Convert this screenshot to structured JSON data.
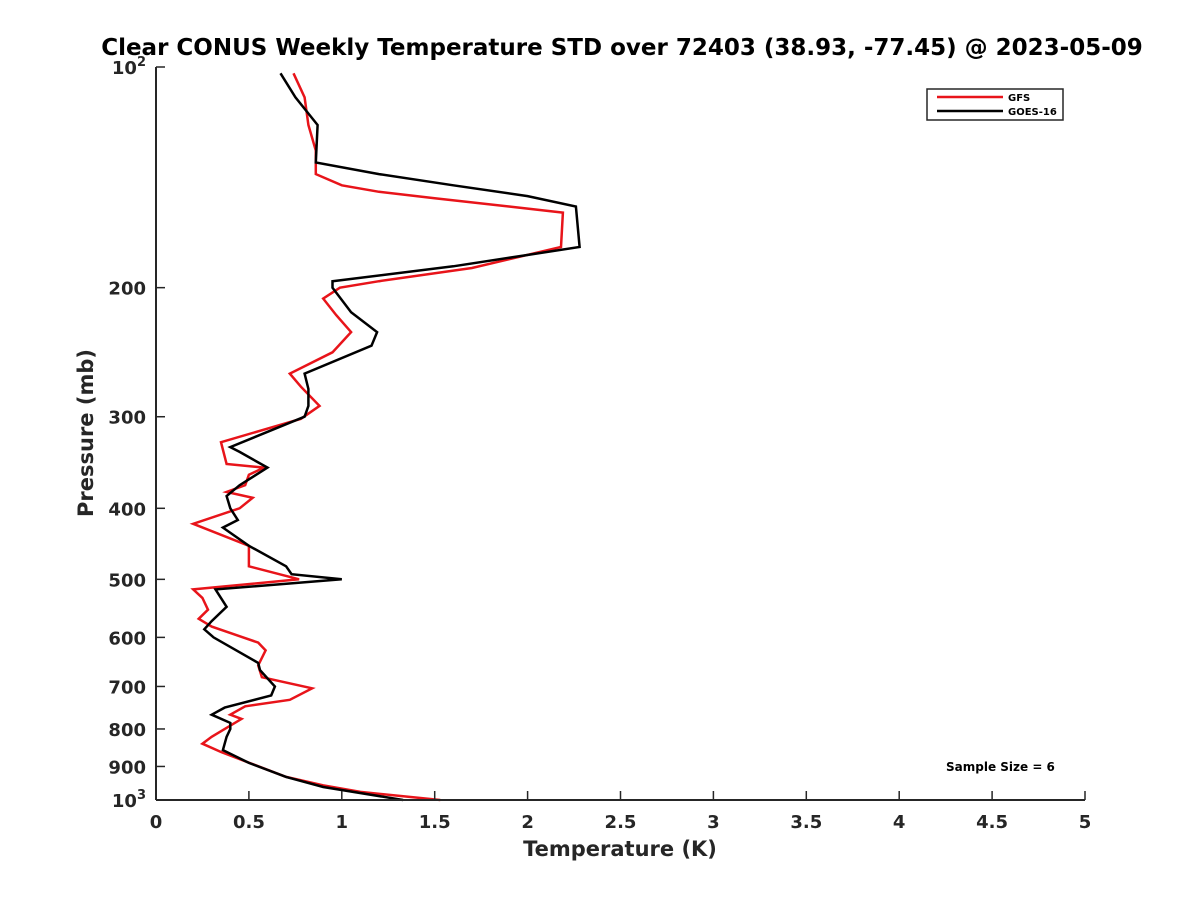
{
  "chart_data": {
    "type": "line",
    "title": "Clear CONUS Weekly Temperature STD over 72403 (38.93, -77.45) @ 2023-05-09",
    "xlabel": "Temperature (K)",
    "ylabel": "Pressure (mb)",
    "xlim": [
      0,
      5
    ],
    "ylim": [
      1000,
      100
    ],
    "y_scale": "log",
    "y_reversed": true,
    "grid": false,
    "legend_position": "top-right",
    "x_ticks": [
      0,
      0.5,
      1,
      1.5,
      2,
      2.5,
      3,
      3.5,
      4,
      4.5,
      5
    ],
    "x_tick_labels": [
      "0",
      "0.5",
      "1",
      "1.5",
      "2",
      "2.5",
      "3",
      "3.5",
      "4",
      "4.5",
      "5"
    ],
    "y_ticks": [
      100,
      200,
      300,
      400,
      500,
      600,
      700,
      800,
      900,
      1000
    ],
    "y_tick_labels": [
      {
        "base": "10",
        "exp": "2"
      },
      {
        "base": "200",
        "exp": ""
      },
      {
        "base": "300",
        "exp": ""
      },
      {
        "base": "400",
        "exp": ""
      },
      {
        "base": "500",
        "exp": ""
      },
      {
        "base": "600",
        "exp": ""
      },
      {
        "base": "700",
        "exp": ""
      },
      {
        "base": "800",
        "exp": ""
      },
      {
        "base": "900",
        "exp": ""
      },
      {
        "base": "10",
        "exp": "3"
      }
    ],
    "annotation": "Sample Size = 6",
    "series": [
      {
        "name": "GFS",
        "color": "#e8141a",
        "x": [
          0.74,
          0.8,
          0.82,
          0.86,
          0.86,
          1.0,
          1.2,
          1.5,
          1.9,
          2.19,
          2.18,
          1.7,
          1.2,
          0.99,
          0.9,
          0.97,
          1.05,
          0.95,
          0.72,
          0.78,
          0.88,
          0.78,
          0.35,
          0.38,
          0.58,
          0.5,
          0.48,
          0.38,
          0.52,
          0.45,
          0.2,
          0.5,
          0.5,
          0.77,
          0.2,
          0.25,
          0.28,
          0.23,
          0.3,
          0.55,
          0.59,
          0.55,
          0.57,
          0.84,
          0.72,
          0.48,
          0.4,
          0.46,
          0.3,
          0.25,
          0.35,
          0.7,
          0.9,
          1.1,
          1.53
        ],
        "y": [
          102,
          110,
          120,
          130,
          140,
          145,
          148,
          151,
          155,
          158,
          176,
          188,
          196,
          200,
          207,
          218,
          230,
          245,
          262,
          273,
          290,
          302,
          325,
          348,
          352,
          360,
          372,
          380,
          387,
          400,
          420,
          450,
          480,
          500,
          516,
          530,
          550,
          566,
          580,
          610,
          625,
          655,
          680,
          704,
          730,
          745,
          765,
          775,
          820,
          838,
          860,
          930,
          955,
          975,
          1000
        ]
      },
      {
        "name": "GOES-16",
        "color": "#000000",
        "x": [
          0.67,
          0.75,
          0.87,
          0.86,
          1.2,
          1.6,
          2.0,
          2.26,
          2.28,
          1.6,
          0.95,
          0.95,
          1.05,
          1.19,
          1.16,
          0.8,
          0.82,
          0.82,
          0.8,
          0.4,
          0.45,
          0.6,
          0.45,
          0.38,
          0.4,
          0.44,
          0.36,
          0.5,
          0.7,
          0.73,
          1.0,
          0.32,
          0.38,
          0.3,
          0.26,
          0.31,
          0.55,
          0.56,
          0.64,
          0.62,
          0.37,
          0.3,
          0.4,
          0.4,
          0.38,
          0.36,
          0.5,
          0.7,
          0.9,
          1.33
        ],
        "y": [
          102,
          110,
          120,
          135,
          140,
          145,
          150,
          155,
          176,
          187,
          196,
          200,
          216,
          230,
          240,
          262,
          275,
          290,
          300,
          330,
          335,
          352,
          372,
          385,
          400,
          415,
          425,
          450,
          480,
          492,
          500,
          516,
          545,
          570,
          585,
          600,
          650,
          665,
          700,
          720,
          748,
          765,
          785,
          800,
          820,
          855,
          890,
          930,
          960,
          1000
        ]
      }
    ]
  }
}
